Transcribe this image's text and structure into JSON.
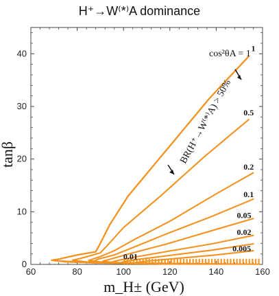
{
  "chart_data": {
    "type": "line",
    "title": "H⁺→W⁽*⁾A dominance",
    "xlabel": "m_H± (GeV)",
    "ylabel": "tanβ",
    "xlim": [
      60,
      160
    ],
    "ylim": [
      0,
      45
    ],
    "x_ticks": [
      60,
      80,
      100,
      120,
      140,
      160
    ],
    "y_ticks": [
      0,
      10,
      20,
      30,
      40
    ],
    "grid": false,
    "colors": {
      "curve": "#f4921f",
      "axis": "#444444",
      "text": "#111111"
    },
    "legend_note": "cos²θA = 1",
    "annotation": "BR(H⁺→W⁽*⁾A) > 50%",
    "series": [
      {
        "name": "1",
        "label": "1",
        "points": [
          [
            154,
            39.5
          ],
          [
            137,
            31.5
          ],
          [
            120,
            22.5
          ],
          [
            102,
            13.0
          ],
          [
            94,
            7.5
          ],
          [
            90,
            4.0
          ],
          [
            88,
            2.4
          ],
          [
            80,
            1.8
          ],
          [
            72,
            1.0
          ],
          [
            69,
            0.8
          ],
          [
            75,
            0.5
          ],
          [
            87,
            0.3
          ],
          [
            100,
            0.2
          ]
        ]
      },
      {
        "name": "0.5",
        "label": "0.5",
        "points": [
          [
            154,
            27.5
          ],
          [
            135,
            20.5
          ],
          [
            116,
            13.0
          ],
          [
            100,
            7.0
          ],
          [
            93,
            3.6
          ],
          [
            90,
            2.2
          ],
          [
            82,
            1.2
          ],
          [
            78,
            0.8
          ],
          [
            86,
            0.35
          ],
          [
            100,
            0.2
          ],
          [
            112,
            0.1
          ]
        ]
      },
      {
        "name": "0.2",
        "label": "0.2",
        "points": [
          [
            156,
            17.4
          ],
          [
            140,
            13.4
          ],
          [
            120,
            8.2
          ],
          [
            105,
            4.8
          ],
          [
            96,
            2.6
          ],
          [
            90,
            1.5
          ],
          [
            85,
            0.75
          ],
          [
            92,
            0.35
          ],
          [
            104,
            0.2
          ],
          [
            118,
            0.1
          ]
        ]
      },
      {
        "name": "0.1",
        "label": "0.1",
        "points": [
          [
            156,
            12.4
          ],
          [
            138,
            9.1
          ],
          [
            118,
            5.7
          ],
          [
            104,
            3.2
          ],
          [
            96,
            1.8
          ],
          [
            89,
            1.0
          ],
          [
            87,
            0.55
          ],
          [
            95,
            0.3
          ],
          [
            108,
            0.15
          ],
          [
            125,
            0.05
          ]
        ]
      },
      {
        "name": "0.05",
        "label": "0.05",
        "points": [
          [
            156,
            8.7
          ],
          [
            138,
            6.4
          ],
          [
            118,
            3.8
          ],
          [
            104,
            2.2
          ],
          [
            96,
            1.2
          ],
          [
            91,
            0.6
          ],
          [
            97,
            0.3
          ],
          [
            111,
            0.15
          ],
          [
            130,
            0.05
          ]
        ]
      },
      {
        "name": "0.02",
        "label": "0.02",
        "points": [
          [
            156,
            5.5
          ],
          [
            138,
            3.9
          ],
          [
            118,
            2.4
          ],
          [
            105,
            1.4
          ],
          [
            98,
            0.8
          ],
          [
            95,
            0.45
          ],
          [
            101,
            0.25
          ],
          [
            115,
            0.12
          ],
          [
            135,
            0.05
          ]
        ]
      },
      {
        "name": "0.01",
        "label": "0.01",
        "points": [
          [
            156,
            3.9
          ],
          [
            138,
            2.7
          ],
          [
            118,
            1.6
          ],
          [
            107,
            1.0
          ],
          [
            101,
            0.6
          ],
          [
            99,
            0.35
          ],
          [
            108,
            0.2
          ],
          [
            125,
            0.1
          ],
          [
            145,
            0.05
          ]
        ]
      },
      {
        "name": "0.005",
        "label": "0.005",
        "points": [
          [
            156,
            2.6
          ],
          [
            140,
            1.8
          ],
          [
            122,
            1.1
          ],
          [
            112,
            0.7
          ],
          [
            107,
            0.45
          ],
          [
            105,
            0.3
          ],
          [
            114,
            0.2
          ],
          [
            132,
            0.1
          ],
          [
            150,
            0.05
          ]
        ]
      }
    ],
    "series_label_positions": [
      {
        "series": "1",
        "text": "1",
        "x": 156,
        "y": 40.5
      },
      {
        "series": "0.5",
        "text": "0.5",
        "x": 154,
        "y": 28.3
      },
      {
        "series": "0.2",
        "text": "0.2",
        "x": 154,
        "y": 18.0
      },
      {
        "series": "0.1",
        "text": "0.1",
        "x": 154,
        "y": 12.8
      },
      {
        "series": "0.05",
        "text": "0.05",
        "x": 152,
        "y": 8.8
      },
      {
        "series": "0.02",
        "text": "0.02",
        "x": 152,
        "y": 5.6
      },
      {
        "series": "0.005",
        "text": "0.005",
        "x": 151,
        "y": 2.5
      },
      {
        "series": "0.01",
        "text": "0.01",
        "x": 103,
        "y": 1.0
      }
    ]
  }
}
